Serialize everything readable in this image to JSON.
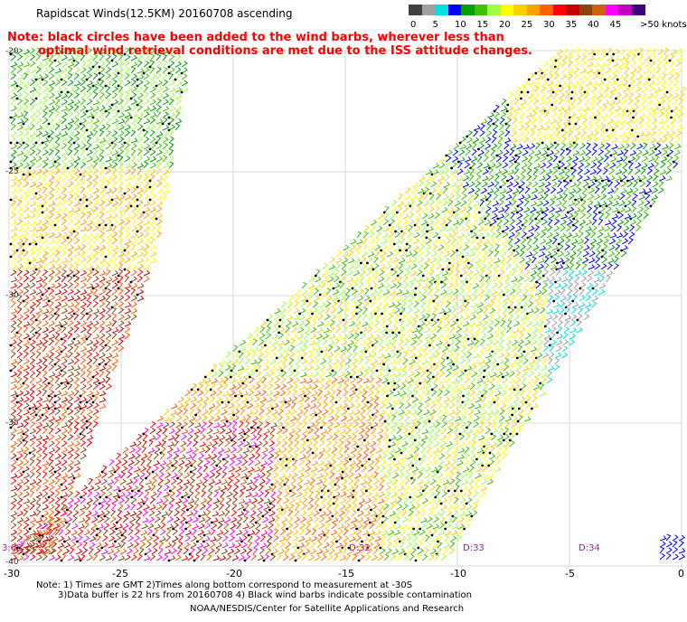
{
  "title": "Rapidscat Winds(12.5KM) 20160708 ascending",
  "notes": [
    "Note: black circles have been added to the wind barbs, wherever less than",
    "optimal wind retrieval conditions are met due to the ISS attitude changes."
  ],
  "legend": {
    "unit_label": ">50 knots",
    "labels": [
      "0",
      "5",
      "10",
      "15",
      "20",
      "25",
      "30",
      "35",
      "40",
      "45"
    ],
    "colors": [
      "#404040",
      "#a0a0a0",
      "#00e0e0",
      "#0000ff",
      "#00a000",
      "#40c000",
      "#a0ff40",
      "#ffff00",
      "#ffd000",
      "#ffa000",
      "#ff6000",
      "#ff0000",
      "#c00000",
      "#8b4513",
      "#d06000",
      "#ff00ff",
      "#c000c0",
      "#400080"
    ]
  },
  "axes": {
    "x_ticks": [
      "-30",
      "-25",
      "-20",
      "-15",
      "-10",
      "-5",
      "0"
    ],
    "y_ticks": [
      "-20",
      "-25",
      "-30",
      "-35",
      "-40"
    ]
  },
  "swath_times": [
    "3:08",
    "D:32",
    "D:33",
    "D:34"
  ],
  "footer": [
    "Note: 1) Times are GMT 2)Times along bottom correspond to measurement at -30S",
    "3)Data buffer is 22 hrs from 20160708 4) Black wind barbs indicate possible contamination",
    "NOAA/NESDIS/Center for Satellite Applications and Research"
  ]
}
